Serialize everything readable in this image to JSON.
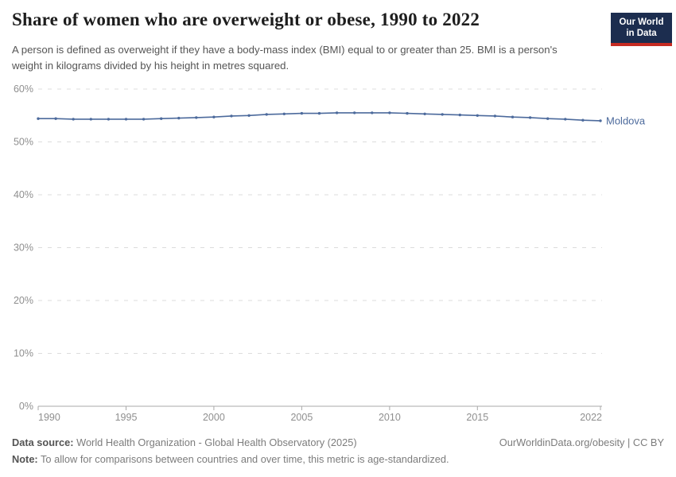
{
  "header": {
    "title": "Share of women who are overweight or obese, 1990 to 2022",
    "subtitle": "A person is defined as overweight if they have a body-mass index (BMI) equal to or greater than 25. BMI is a person's weight in kilograms divided by his height in metres squared.",
    "logo": {
      "line1": "Our World",
      "line2": "in Data",
      "bg_color": "#1c2d4f",
      "stripe_color": "#c62b22"
    }
  },
  "chart_data": {
    "type": "line",
    "title": "Share of women who are overweight or obese, 1990 to 2022",
    "xlabel": "",
    "ylabel": "",
    "xlim": [
      1990,
      2022
    ],
    "ylim": [
      0,
      60
    ],
    "grid": "horizontal-dashed",
    "legend_position": "end-of-line",
    "x": [
      1990,
      1991,
      1992,
      1993,
      1994,
      1995,
      1996,
      1997,
      1998,
      1999,
      2000,
      2001,
      2002,
      2003,
      2004,
      2005,
      2006,
      2007,
      2008,
      2009,
      2010,
      2011,
      2012,
      2013,
      2014,
      2015,
      2016,
      2017,
      2018,
      2019,
      2020,
      2021,
      2022
    ],
    "series": [
      {
        "name": "Moldova",
        "color": "#4c6a9c",
        "values": [
          54.4,
          54.4,
          54.3,
          54.3,
          54.3,
          54.3,
          54.3,
          54.4,
          54.5,
          54.6,
          54.7,
          54.9,
          55.0,
          55.2,
          55.3,
          55.4,
          55.4,
          55.5,
          55.5,
          55.5,
          55.5,
          55.4,
          55.3,
          55.2,
          55.1,
          55.0,
          54.9,
          54.7,
          54.6,
          54.4,
          54.3,
          54.1,
          54.0
        ]
      }
    ],
    "x_ticks": [
      1990,
      1995,
      2000,
      2005,
      2010,
      2015,
      2022
    ],
    "x_tick_labels": [
      "1990",
      "1995",
      "2000",
      "2005",
      "2010",
      "2015",
      "2022"
    ],
    "y_ticks": [
      0,
      10,
      20,
      30,
      40,
      50,
      60
    ],
    "y_tick_labels": [
      "0%",
      "10%",
      "20%",
      "30%",
      "40%",
      "50%",
      "60%"
    ],
    "style": {
      "line_color": "#4c6a9c",
      "grid_color": "#dcdcdc",
      "axis_color": "#a9a9a9",
      "tick_label_color": "#8f8f8f"
    }
  },
  "footer": {
    "data_source_label": "Data source:",
    "data_source_value": "World Health Organization - Global Health Observatory (2025)",
    "attribution": "OurWorldinData.org/obesity | CC BY",
    "note_label": "Note:",
    "note_value": "To allow for comparisons between countries and over time, this metric is age-standardized."
  }
}
